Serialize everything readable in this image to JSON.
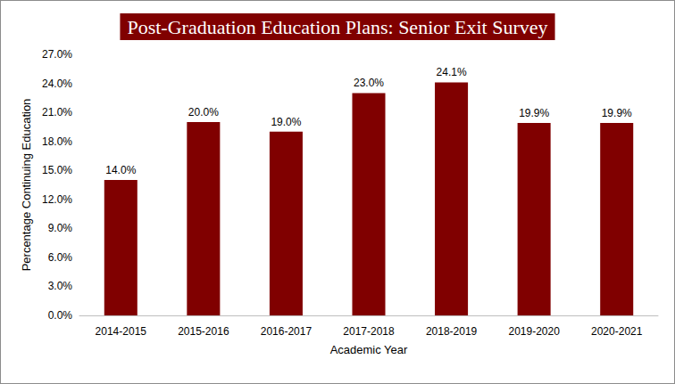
{
  "chart_data": {
    "type": "bar",
    "title": "Post-Graduation Education Plans: Senior Exit Survey",
    "x_label": "Academic Year",
    "y_label": "Percentage Continuing Education",
    "categories": [
      "2014-2015",
      "2015-2016",
      "2016-2017",
      "2017-2018",
      "2018-2019",
      "2019-2020",
      "2020-2021"
    ],
    "values": [
      14.0,
      20.0,
      19.0,
      23.0,
      24.1,
      19.9,
      19.9
    ],
    "value_labels": [
      "14.0%",
      "20.0%",
      "19.0%",
      "23.0%",
      "24.1%",
      "19.9%",
      "19.9%"
    ],
    "color": "#800000",
    "ylim": [
      0,
      27
    ],
    "yticks": [
      {
        "value": 0,
        "label": "0.0%"
      },
      {
        "value": 3,
        "label": "3.0%"
      },
      {
        "value": 6,
        "label": "6.0%"
      },
      {
        "value": 9,
        "label": "9.0%"
      },
      {
        "value": 12,
        "label": "12.0%"
      },
      {
        "value": 15,
        "label": "15.0%"
      },
      {
        "value": 18,
        "label": "18.0%"
      },
      {
        "value": 21,
        "label": "21.0%"
      },
      {
        "value": 24,
        "label": "24.0%"
      },
      {
        "value": 27,
        "label": "27.0%"
      }
    ],
    "grid": false,
    "data_labels": true
  }
}
